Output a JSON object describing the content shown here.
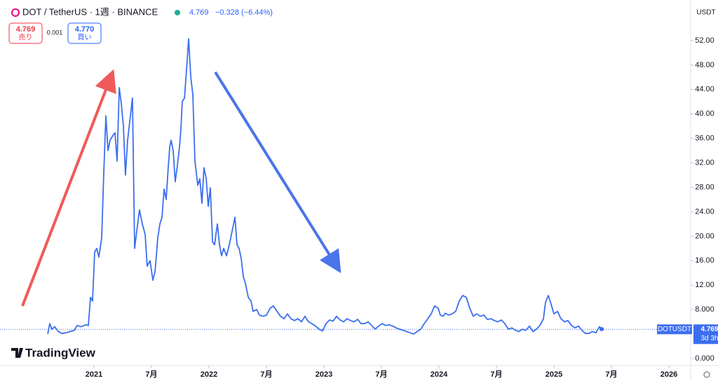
{
  "header": {
    "symbol": "DOT / TetherUS · 1週 · BINANCE",
    "price": "4.769",
    "change": "−0.328 (−6.44%)",
    "currency": "USDT"
  },
  "trade": {
    "sell_price": "4.769",
    "sell_label": "売り",
    "spread": "0.001",
    "buy_price": "4.770",
    "buy_label": "買い"
  },
  "brand": "TradingView",
  "chart_data": {
    "type": "line",
    "x": [
      2020.598,
      2020.616,
      2020.634,
      2020.659,
      2020.689,
      2020.72,
      2020.756,
      2020.793,
      2020.829,
      2020.854,
      2020.89,
      2020.927,
      2020.951,
      2020.97,
      2020.988,
      2021.006,
      2021.024,
      2021.043,
      2021.067,
      2021.085,
      2021.104,
      2021.122,
      2021.14,
      2021.165,
      2021.183,
      2021.201,
      2021.22,
      2021.238,
      2021.256,
      2021.274,
      2021.293,
      2021.317,
      2021.335,
      2021.354,
      2021.372,
      2021.396,
      2021.421,
      2021.445,
      2021.463,
      2021.488,
      2021.512,
      2021.531,
      2021.555,
      2021.573,
      2021.592,
      2021.61,
      2021.628,
      2021.646,
      2021.659,
      2021.671,
      2021.689,
      2021.707,
      2021.726,
      2021.744,
      2021.756,
      2021.768,
      2021.787,
      2021.805,
      2021.823,
      2021.842,
      2021.86,
      2021.878,
      2021.903,
      2021.921,
      2021.939,
      2021.957,
      2021.976,
      2021.994,
      2022.012,
      2022.031,
      2022.049,
      2022.073,
      2022.092,
      2022.11,
      2022.128,
      2022.153,
      2022.177,
      2022.201,
      2022.226,
      2022.244,
      2022.262,
      2022.281,
      2022.299,
      2022.317,
      2022.342,
      2022.366,
      2022.384,
      2022.415,
      2022.439,
      2022.47,
      2022.5,
      2022.531,
      2022.561,
      2022.592,
      2022.622,
      2022.653,
      2022.683,
      2022.713,
      2022.744,
      2022.774,
      2022.805,
      2022.835,
      2022.866,
      2022.896,
      2022.927,
      2022.957,
      2022.988,
      2023.018,
      2023.049,
      2023.079,
      2023.11,
      2023.14,
      2023.171,
      2023.201,
      2023.232,
      2023.262,
      2023.293,
      2023.323,
      2023.354,
      2023.384,
      2023.415,
      2023.445,
      2023.476,
      2023.506,
      2023.537,
      2023.567,
      2023.598,
      2023.628,
      2023.659,
      2023.689,
      2023.72,
      2023.75,
      2023.781,
      2023.811,
      2023.842,
      2023.872,
      2023.903,
      2023.933,
      2023.963,
      2023.994,
      2024.012,
      2024.037,
      2024.055,
      2024.085,
      2024.116,
      2024.146,
      2024.177,
      2024.207,
      2024.238,
      2024.268,
      2024.299,
      2024.329,
      2024.36,
      2024.39,
      2024.421,
      2024.451,
      2024.482,
      2024.512,
      2024.543,
      2024.573,
      2024.604,
      2024.634,
      2024.665,
      2024.695,
      2024.726,
      2024.756,
      2024.787,
      2024.817,
      2024.848,
      2024.878,
      2024.909,
      2024.927,
      2024.951,
      2024.97,
      2025.0,
      2025.031,
      2025.061,
      2025.092,
      2025.122,
      2025.153,
      2025.183,
      2025.213,
      2025.244,
      2025.274,
      2025.305,
      2025.335,
      2025.366,
      2025.396,
      2025.415
    ],
    "series": [
      {
        "name": "DOTUSDT",
        "color": "#3b6ef0",
        "values": [
          4.0,
          5.7,
          4.8,
          5.2,
          4.4,
          4.1,
          4.2,
          4.4,
          4.6,
          5.4,
          5.2,
          5.5,
          5.4,
          10.0,
          9.4,
          17.4,
          18.0,
          16.6,
          19.7,
          30.0,
          39.7,
          34.0,
          35.7,
          36.5,
          36.9,
          32.3,
          44.3,
          41.7,
          38.0,
          30.0,
          35.7,
          39.7,
          42.6,
          18.0,
          20.8,
          24.3,
          22.0,
          20.3,
          15.1,
          16.0,
          12.8,
          14.2,
          19.7,
          22.0,
          23.1,
          27.7,
          26.0,
          31.2,
          34.6,
          35.7,
          34.0,
          28.9,
          31.7,
          34.6,
          37.5,
          42.0,
          42.6,
          47.2,
          52.3,
          46.0,
          43.2,
          32.3,
          28.3,
          29.4,
          25.4,
          31.2,
          29.4,
          24.9,
          27.9,
          19.1,
          18.6,
          22.0,
          18.6,
          16.8,
          18.0,
          16.8,
          18.6,
          20.8,
          23.1,
          18.6,
          18.0,
          16.3,
          13.4,
          12.3,
          10.0,
          9.4,
          7.7,
          8.0,
          7.1,
          6.9,
          7.1,
          8.2,
          8.6,
          7.7,
          6.9,
          6.5,
          7.3,
          6.5,
          6.2,
          6.5,
          6.0,
          6.9,
          6.0,
          5.7,
          5.3,
          4.8,
          4.5,
          5.7,
          6.3,
          6.1,
          6.9,
          6.3,
          6.0,
          6.5,
          6.2,
          6.0,
          6.4,
          5.7,
          5.7,
          6.0,
          5.4,
          4.8,
          5.3,
          5.7,
          5.4,
          5.5,
          5.3,
          5.0,
          4.8,
          4.6,
          4.4,
          4.2,
          4.0,
          4.4,
          4.8,
          5.7,
          6.5,
          7.3,
          8.6,
          8.2,
          7.1,
          6.9,
          7.4,
          7.1,
          7.3,
          7.7,
          9.4,
          10.3,
          10.0,
          8.2,
          6.9,
          7.3,
          6.9,
          7.1,
          6.4,
          6.5,
          6.2,
          6.0,
          6.3,
          5.7,
          4.8,
          5.0,
          4.6,
          4.4,
          4.8,
          4.6,
          5.3,
          4.4,
          4.8,
          5.4,
          6.5,
          9.2,
          10.3,
          9.2,
          7.3,
          7.7,
          6.5,
          6.0,
          6.2,
          5.4,
          5.0,
          5.3,
          4.6,
          4.1,
          4.1,
          4.4,
          4.2,
          5.2,
          4.8
        ]
      }
    ],
    "last_price": 4.769,
    "countdown": "3d 3h",
    "xlim": [
      2020.183,
      2026.189
    ],
    "ylim": [
      -1.15,
      58.64
    ],
    "xticks": [
      {
        "value": 2021,
        "label": "2021"
      },
      {
        "value": 2021.5,
        "label": "7月"
      },
      {
        "value": 2022,
        "label": "2022"
      },
      {
        "value": 2022.5,
        "label": "7月"
      },
      {
        "value": 2023,
        "label": "2023"
      },
      {
        "value": 2023.5,
        "label": "7月"
      },
      {
        "value": 2024,
        "label": "2024"
      },
      {
        "value": 2024.5,
        "label": "7月"
      },
      {
        "value": 2025,
        "label": "2025"
      },
      {
        "value": 2025.5,
        "label": "7月"
      },
      {
        "value": 2026,
        "label": "2026"
      }
    ],
    "yticks": [
      {
        "value": 0,
        "label": "0.000"
      },
      {
        "value": 8,
        "label": "8.000"
      },
      {
        "value": 12,
        "label": "12.00"
      },
      {
        "value": 16,
        "label": "16.00"
      },
      {
        "value": 20,
        "label": "20.00"
      },
      {
        "value": 24,
        "label": "24.00"
      },
      {
        "value": 28,
        "label": "28.00"
      },
      {
        "value": 32,
        "label": "32.00"
      },
      {
        "value": 36,
        "label": "36.00"
      },
      {
        "value": 40,
        "label": "40.00"
      },
      {
        "value": 44,
        "label": "44.00"
      },
      {
        "value": 48,
        "label": "48.00"
      },
      {
        "value": 52,
        "label": "52.00"
      }
    ]
  }
}
